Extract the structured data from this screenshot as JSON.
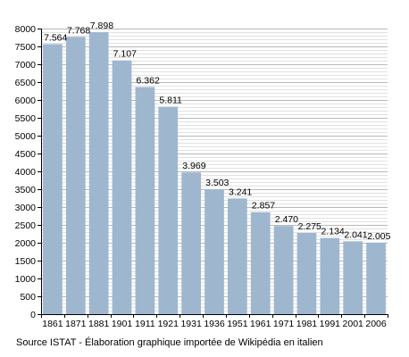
{
  "chart_data": {
    "type": "bar",
    "categories": [
      "1861",
      "1871",
      "1881",
      "1901",
      "1911",
      "1921",
      "1931",
      "1936",
      "1951",
      "1961",
      "1971",
      "1981",
      "1991",
      "2001",
      "2006"
    ],
    "values": [
      7564,
      7768,
      7898,
      7107,
      6362,
      5811,
      3969,
      3503,
      3241,
      2857,
      2470,
      2275,
      2134,
      2041,
      2005
    ],
    "data_labels": [
      "7.564",
      "7.768",
      "7.898",
      "7.107",
      "6.362",
      "5.811",
      "3.969",
      "3.503",
      "3.241",
      "2.857",
      "2.470",
      "2.275",
      "2.134",
      "2.041",
      "2.005"
    ],
    "ylim": [
      0,
      8000
    ],
    "y_ticks": [
      0,
      500,
      1000,
      1500,
      2000,
      2500,
      3000,
      3500,
      4000,
      4500,
      5000,
      5500,
      6000,
      6500,
      7000,
      7500,
      8000
    ],
    "y_minor_step": 100,
    "grid": true,
    "title": "",
    "xlabel": "",
    "ylabel": "",
    "colors": {
      "bar": "#9fb6cf",
      "grid_minor": "#e1e1e1",
      "grid_major": "#b8b8b8",
      "axis": "#000000",
      "text": "#000000"
    }
  },
  "source_note": "Source ISTAT - Élaboration graphique importée de Wikipédia en italien"
}
